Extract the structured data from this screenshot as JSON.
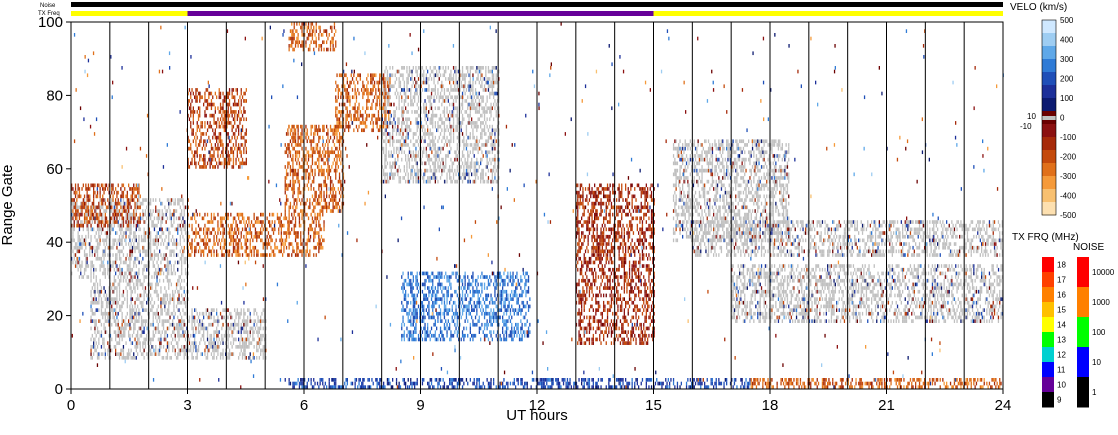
{
  "chart_data": {
    "type": "heatmap",
    "xlabel": "UT hours",
    "ylabel": "Range Gate",
    "xlim": [
      0,
      24
    ],
    "ylim": [
      0,
      100
    ],
    "x_ticks": [
      "0",
      "3",
      "6",
      "9",
      "12",
      "15",
      "18",
      "21",
      "24"
    ],
    "y_ticks": [
      "0",
      "20",
      "40",
      "60",
      "80",
      "100"
    ],
    "hour_gridlines": [
      1,
      2,
      3,
      4,
      5,
      6,
      7,
      8,
      9,
      10,
      11,
      12,
      13,
      14,
      15,
      16,
      17,
      18,
      19,
      20,
      21,
      22,
      23
    ],
    "status_bars": {
      "noise_label": "Noise",
      "txfreq_label": "TX Freq",
      "txfreq_segments": [
        {
          "start": 0,
          "end": 3,
          "color": "#ffff00"
        },
        {
          "start": 3,
          "end": 15,
          "color": "#660099"
        },
        {
          "start": 15,
          "end": 24,
          "color": "#ffff00"
        }
      ]
    },
    "velocity_colorbar": {
      "title": "VELO (km/s)",
      "ticks": [
        "500",
        "400",
        "300",
        "200",
        "100",
        "0",
        "-100",
        "-200",
        "-300",
        "-400",
        "-500"
      ],
      "tick_values": [
        500,
        400,
        300,
        200,
        100,
        0,
        -100,
        -200,
        -300,
        -400,
        -500
      ],
      "ground_scatter_labels": [
        "10",
        "-10"
      ],
      "colors_top_to_bottom": [
        "#cfe8ff",
        "#9ecdf2",
        "#5fa8e8",
        "#2f7bd6",
        "#1f4fb8",
        "#1c2f99",
        "#0c1a70",
        "#6b0000",
        "#8b1010",
        "#a62a0a",
        "#c44a0c",
        "#e0701a",
        "#f59a3a",
        "#f8c070",
        "#fde0b0"
      ]
    },
    "frequency_colorbar": {
      "title": "TX FRQ (MHz)",
      "ticks": [
        "18",
        "17",
        "16",
        "15",
        "14",
        "13",
        "12",
        "11",
        "10",
        "9"
      ],
      "colors_top_to_bottom": [
        "#ff0000",
        "#ff4000",
        "#ff8000",
        "#ffc000",
        "#ffff00",
        "#00ff00",
        "#00d0d0",
        "#0000ff",
        "#660099",
        "#000000"
      ]
    },
    "noise_colorbar": {
      "title": "NOISE",
      "ticks": [
        "10000",
        "1000",
        "100",
        "10",
        "1"
      ],
      "colors_top_to_bottom": [
        "#ff0000",
        "#ff8000",
        "#00ff00",
        "#0000ff",
        "#000000"
      ]
    },
    "scatter_regions": [
      {
        "name": "ground-scatter-early-upper",
        "t0": 0.0,
        "t1": 3.0,
        "g0": 30,
        "g1": 52,
        "vel": 0,
        "gs": true
      },
      {
        "name": "ground-scatter-early-lower",
        "t0": 0.5,
        "t1": 3.0,
        "g0": 8,
        "g1": 30,
        "vel": 0,
        "gs": true
      },
      {
        "name": "ground-scatter-3-5",
        "t0": 3.0,
        "t1": 5.0,
        "g0": 8,
        "g1": 22,
        "vel": 0,
        "gs": true
      },
      {
        "name": "red-band-0-1",
        "t0": 0.0,
        "t1": 1.8,
        "g0": 44,
        "g1": 56,
        "vel": -200,
        "gs": false
      },
      {
        "name": "red-band-3-7",
        "t0": 3.0,
        "t1": 6.5,
        "g0": 36,
        "g1": 48,
        "vel": -250,
        "gs": false
      },
      {
        "name": "red-band-rising-6-7",
        "t0": 5.5,
        "t1": 7.0,
        "g0": 48,
        "g1": 72,
        "vel": -250,
        "gs": false
      },
      {
        "name": "red-band-7-8",
        "t0": 6.8,
        "t1": 8.2,
        "g0": 70,
        "g1": 86,
        "vel": -250,
        "gs": false
      },
      {
        "name": "grey-arc-8-11",
        "t0": 8.0,
        "t1": 11.0,
        "g0": 56,
        "g1": 88,
        "vel": 0,
        "gs": true
      },
      {
        "name": "blue-patch-9-12",
        "t0": 8.5,
        "t1": 11.8,
        "g0": 13,
        "g1": 32,
        "vel": 250,
        "gs": false
      },
      {
        "name": "blue-floor-5-18",
        "t0": 5.5,
        "t1": 17.5,
        "g0": 0,
        "g1": 3,
        "vel": 150,
        "gs": false
      },
      {
        "name": "red-floor-17-24",
        "t0": 17.5,
        "t1": 24.0,
        "g0": 0,
        "g1": 3,
        "vel": -250,
        "gs": false
      },
      {
        "name": "grey-late-upper",
        "t0": 16.0,
        "t1": 24.0,
        "g0": 36,
        "g1": 46,
        "vel": 0,
        "gs": true
      },
      {
        "name": "grey-late-lower",
        "t0": 17.0,
        "t1": 24.0,
        "g0": 18,
        "g1": 34,
        "vel": 0,
        "gs": true
      },
      {
        "name": "mixed-14-15",
        "t0": 13.0,
        "t1": 15.0,
        "g0": 12,
        "g1": 56,
        "vel": -150,
        "gs": false
      },
      {
        "name": "grey-arc-15-18",
        "t0": 15.5,
        "t1": 18.5,
        "g0": 40,
        "g1": 68,
        "vel": 0,
        "gs": true
      },
      {
        "name": "red-top-5-6",
        "t0": 5.6,
        "t1": 6.8,
        "g0": 92,
        "g1": 100,
        "vel": -250,
        "gs": false
      },
      {
        "name": "red-mid-3-4",
        "t0": 3.0,
        "t1": 4.5,
        "g0": 60,
        "g1": 82,
        "vel": -200,
        "gs": false
      }
    ]
  }
}
